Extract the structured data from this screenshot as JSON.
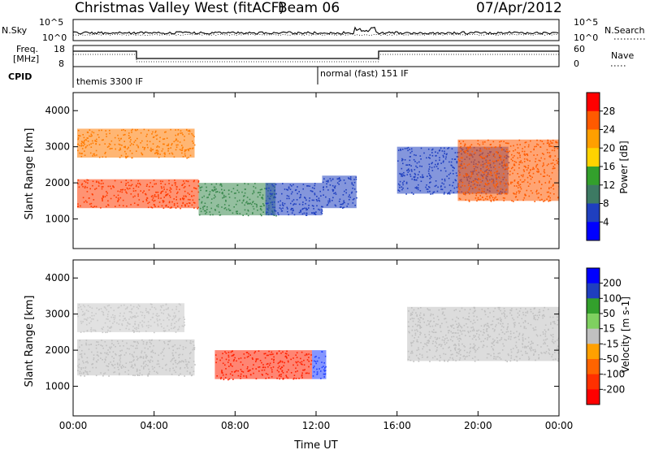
{
  "header": {
    "station": "Christmas Valley West (fitACF)",
    "beam": "Beam 06",
    "date": "07/Apr/2012"
  },
  "mini_panels": {
    "nsky_label": "N.Sky",
    "nsearch_label": "N.Search",
    "freq_label_1": "Freq.",
    "freq_label_2": "[MHz]",
    "nave_label": "Nave",
    "cpid_label": "CPID",
    "noise_ticks": [
      "10^5",
      "10^0"
    ],
    "freq_ticks": [
      "18",
      "8"
    ],
    "nave_ticks": [
      "60",
      "0"
    ],
    "cpid_segments": [
      {
        "name": "themis 3300 IF",
        "start_h": 0,
        "end_h": 12
      },
      {
        "name": "normal (fast) 151 IF",
        "start_h": 12,
        "end_h": 24
      }
    ]
  },
  "chart_data": [
    {
      "type": "heatmap",
      "title": "",
      "xlabel": "",
      "ylabel": "Slant Range [km]",
      "x_ticks": [
        "00:00",
        "04:00",
        "08:00",
        "12:00",
        "16:00",
        "20:00",
        "00:00"
      ],
      "xlim": [
        0,
        24
      ],
      "ylim": [
        180,
        4500
      ],
      "y_ticks": [
        1000,
        2000,
        3000,
        4000
      ],
      "colorbar": {
        "label": "Power [dB]",
        "ticks": [
          "28",
          "24",
          "20",
          "16",
          "12",
          "8",
          "4"
        ],
        "colors": [
          "#ff0000",
          "#ff5a00",
          "#ff9f00",
          "#ffd300",
          "#33a02c",
          "#3d7a63",
          "#1f3fbf",
          "#0000ff"
        ]
      },
      "regions": [
        {
          "x0": 0.2,
          "x1": 6.2,
          "r0": 1300,
          "r1": 2100,
          "color": "#ff3a00"
        },
        {
          "x0": 0.2,
          "x1": 6.0,
          "r0": 2700,
          "r1": 3500,
          "color": "#ff7a00"
        },
        {
          "x0": 6.2,
          "x1": 10.0,
          "r0": 1100,
          "r1": 2000,
          "color": "#3d8a50"
        },
        {
          "x0": 9.5,
          "x1": 12.3,
          "r0": 1100,
          "r1": 2000,
          "color": "#1f3fbf"
        },
        {
          "x0": 12.3,
          "x1": 14.0,
          "r0": 1300,
          "r1": 2200,
          "color": "#1f3fbf"
        },
        {
          "x0": 16.0,
          "x1": 21.5,
          "r0": 1700,
          "r1": 3000,
          "color": "#1f3fbf"
        },
        {
          "x0": 19.0,
          "x1": 24.0,
          "r0": 1500,
          "r1": 3200,
          "color": "#ff5a00"
        }
      ]
    },
    {
      "type": "heatmap",
      "title": "",
      "xlabel": "Time UT",
      "ylabel": "Slant Range [km]",
      "x_ticks": [
        "00:00",
        "04:00",
        "08:00",
        "12:00",
        "16:00",
        "20:00",
        "00:00"
      ],
      "xlim": [
        0,
        24
      ],
      "ylim": [
        180,
        4500
      ],
      "y_ticks": [
        1000,
        2000,
        3000,
        4000
      ],
      "colorbar": {
        "label": "Velocity [m s-1]",
        "ticks": [
          "200",
          "100",
          "50",
          "15",
          "-15",
          "-50",
          "-100",
          "-200"
        ],
        "colors": [
          "#0000ff",
          "#1f3fbf",
          "#33a02c",
          "#7fd060",
          "#c0c0c0",
          "#ffa000",
          "#ff6400",
          "#ff3000",
          "#ff0000"
        ]
      },
      "regions": [
        {
          "x0": 0.2,
          "x1": 6.0,
          "r0": 1300,
          "r1": 2300,
          "color": "#c0c0c0"
        },
        {
          "x0": 0.2,
          "x1": 5.5,
          "r0": 2500,
          "r1": 3300,
          "color": "#c8c8c8"
        },
        {
          "x0": 7.0,
          "x1": 11.8,
          "r0": 1200,
          "r1": 2000,
          "color": "#ff2000"
        },
        {
          "x0": 11.8,
          "x1": 12.5,
          "r0": 1200,
          "r1": 2000,
          "color": "#2040ff"
        },
        {
          "x0": 16.5,
          "x1": 24.0,
          "r0": 1700,
          "r1": 3200,
          "color": "#c0c0c0"
        }
      ]
    }
  ]
}
